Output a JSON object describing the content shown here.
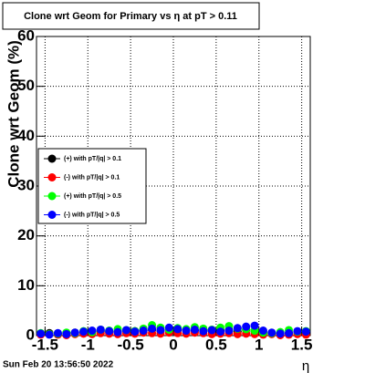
{
  "chart_data": {
    "type": "scatter",
    "title": "Clone wrt Geom for Primary vs  η at pT > 0.11",
    "y_label": "Clone wrt Geom (%)",
    "x_label": "η",
    "footer": "Sun Feb 20 13:56:50 2022",
    "xlim": [
      -1.6,
      1.6
    ],
    "xticks": [
      -1.5,
      -1,
      -0.5,
      0,
      0.5,
      1,
      1.5
    ],
    "ylim": [
      0,
      60
    ],
    "yticks": [
      0,
      10,
      20,
      30,
      40,
      50,
      60
    ],
    "grid": true,
    "legend": "left",
    "x": [
      -1.55,
      -1.45,
      -1.35,
      -1.25,
      -1.15,
      -1.05,
      -0.95,
      -0.85,
      -0.75,
      -0.65,
      -0.55,
      -0.45,
      -0.35,
      -0.25,
      -0.15,
      -0.05,
      0.05,
      0.15,
      0.25,
      0.35,
      0.45,
      0.55,
      0.65,
      0.75,
      0.85,
      0.95,
      1.05,
      1.15,
      1.25,
      1.35,
      1.45,
      1.55
    ],
    "series": [
      {
        "name": "(+) with pT/|q| > 0.1",
        "color": "#000000",
        "values": [
          0.4,
          0.5,
          0.3,
          0.5,
          0.6,
          0.7,
          0.8,
          0.9,
          0.7,
          0.8,
          1.0,
          0.9,
          1.1,
          1.2,
          1.0,
          1.3,
          1.2,
          1.1,
          1.0,
          1.2,
          0.9,
          1.0,
          1.1,
          0.8,
          1.2,
          0.9,
          0.6,
          0.5,
          0.4,
          0.5,
          0.6,
          0.5
        ]
      },
      {
        "name": "(-) with pT/|q| > 0.1",
        "color": "#ff0000",
        "values": [
          0.2,
          0.3,
          0.2,
          0.1,
          0.3,
          0.4,
          0.3,
          0.5,
          0.4,
          0.3,
          0.5,
          0.4,
          0.6,
          0.5,
          0.4,
          0.6,
          0.5,
          0.4,
          0.6,
          0.5,
          0.3,
          0.4,
          0.5,
          0.3,
          0.4,
          0.3,
          0.2,
          0.3,
          0.1,
          0.2,
          0.3,
          0.2
        ]
      },
      {
        "name": "(+) with pT/|q| > 0.5",
        "color": "#00ff00",
        "values": [
          0.5,
          0.3,
          0.4,
          0.6,
          0.5,
          0.9,
          0.7,
          1.2,
          1.0,
          1.3,
          1.1,
          0.9,
          1.4,
          2.1,
          1.6,
          1.2,
          1.5,
          1.3,
          1.7,
          1.4,
          1.2,
          1.6,
          1.9,
          1.4,
          1.3,
          1.0,
          0.6,
          0.5,
          0.7,
          1.1,
          0.8,
          0.9
        ]
      },
      {
        "name": "(-) with pT/|q| > 0.5",
        "color": "#0000ff",
        "values": [
          0.4,
          0.2,
          0.5,
          0.3,
          0.6,
          0.8,
          1.0,
          1.2,
          0.9,
          0.7,
          1.1,
          0.8,
          1.0,
          1.4,
          1.1,
          1.6,
          1.3,
          1.0,
          1.2,
          0.9,
          1.1,
          0.8,
          1.0,
          1.5,
          1.8,
          2.0,
          1.0,
          0.6,
          0.4,
          0.5,
          0.9,
          0.8
        ]
      }
    ]
  }
}
